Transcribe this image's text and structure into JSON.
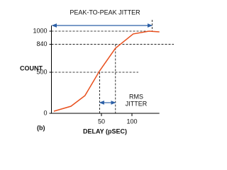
{
  "chart_data": {
    "type": "line",
    "title": "PEAK-TO-PEAK JITTER",
    "panel_label": "(b)",
    "x_label": "DELAY (pSEC)",
    "y_label": "COUNT",
    "x": [
      -28,
      0,
      23,
      47,
      73,
      102,
      128,
      145
    ],
    "series": [
      {
        "name": "count",
        "color": "#e8501e",
        "values": [
          26,
          86,
          216,
          517,
          793,
          966,
          1000,
          991
        ]
      }
    ],
    "xlim": [
      -32,
      145
    ],
    "xticks": [
      50,
      100
    ],
    "ylim": [
      0,
      1000
    ],
    "yticks": [
      0,
      500,
      840,
      1000
    ],
    "annotations": [
      {
        "text": "PEAK-TO-PEAK JITTER",
        "x": [
          -32,
          133
        ],
        "y": 1000,
        "color": "#2b5fa6"
      },
      {
        "lines": [
          "RMS",
          "JITTER"
        ],
        "x": [
          47,
          73
        ],
        "y": 130,
        "color": "#2b5fa6"
      }
    ]
  }
}
